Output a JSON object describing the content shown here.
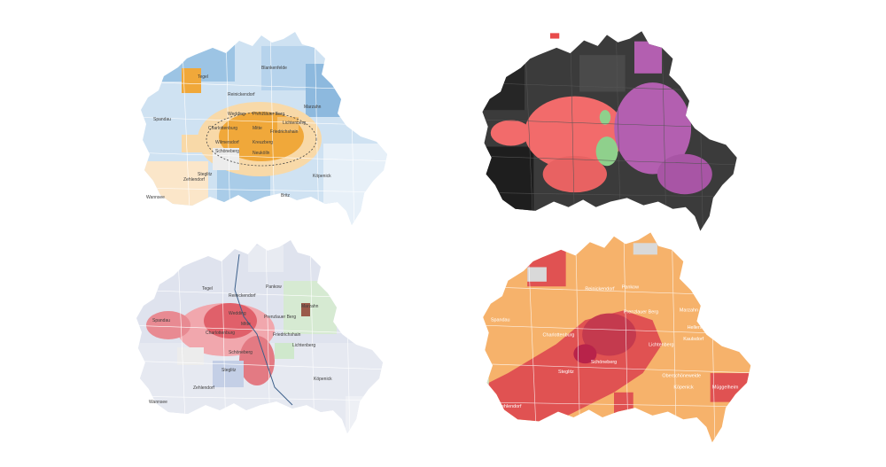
{
  "maps": [
    {
      "id": "top-left",
      "style": "blue-orange choropleth",
      "colors": {
        "base": "#cfe2f2",
        "dark": "#7fb1d8",
        "light": "#e7f0f8",
        "accent": "#f0a83a",
        "pale_accent": "#f8d9a8",
        "outline": "#ffffff"
      },
      "labels": [
        "Tegel",
        "Blankenfelde",
        "Reinickendorf",
        "Spandau",
        "Wedding",
        "Prenzlauer Berg",
        "Mitte",
        "Charlottenburg",
        "Friedrichshain",
        "Lichtenberg",
        "Marzahn",
        "Wilmersdorf",
        "Kreuzberg",
        "Schöneberg",
        "Neukölln",
        "Steglitz",
        "Zehlendorf",
        "Britz",
        "Köpenick",
        "Wannsee"
      ]
    },
    {
      "id": "top-right",
      "style": "dark election map",
      "colors": {
        "base": "#3b3b3b",
        "dark": "#1e1e1e",
        "red": "#f26b6b",
        "purple": "#b35fb0",
        "green": "#8fd08c",
        "outline": "#555555"
      },
      "labels": []
    },
    {
      "id": "bottom-left",
      "style": "pastel party map",
      "colors": {
        "base": "#dfe3ee",
        "red": "#e0606a",
        "pink": "#f1a7ad",
        "green": "#cfe8cc",
        "blue": "#b8c6e3",
        "brown": "#9a5a4a",
        "line": "#3b5f8a"
      },
      "labels": [
        "Tegel",
        "Reinickendorf",
        "Pankow",
        "Spandau",
        "Wedding",
        "Prenzlauer Berg",
        "Mitte",
        "Marzahn",
        "Charlottenburg",
        "Friedrichshain",
        "Lichtenberg",
        "Schöneberg",
        "Steglitz",
        "Zehlendorf",
        "Köpenick",
        "Wannsee"
      ]
    },
    {
      "id": "bottom-right",
      "style": "red-orange choropleth",
      "colors": {
        "base": "#f6b26b",
        "red": "#e05252",
        "dark_red": "#b8234a",
        "grey": "#d9d9d9",
        "green": "#cfe5cf",
        "outline": "#ffffff"
      },
      "labels": [
        "Reinickendorf",
        "Pankow",
        "Spandau",
        "Prenzlauer Berg",
        "Marzahn",
        "Charlottenburg",
        "Lichtenberg",
        "Hellersdorf",
        "Kaulsdorf",
        "Steglitz",
        "Schöneberg",
        "Oberschöneweide",
        "Köpenick",
        "Zehlendorf",
        "Müggelheim"
      ]
    }
  ]
}
